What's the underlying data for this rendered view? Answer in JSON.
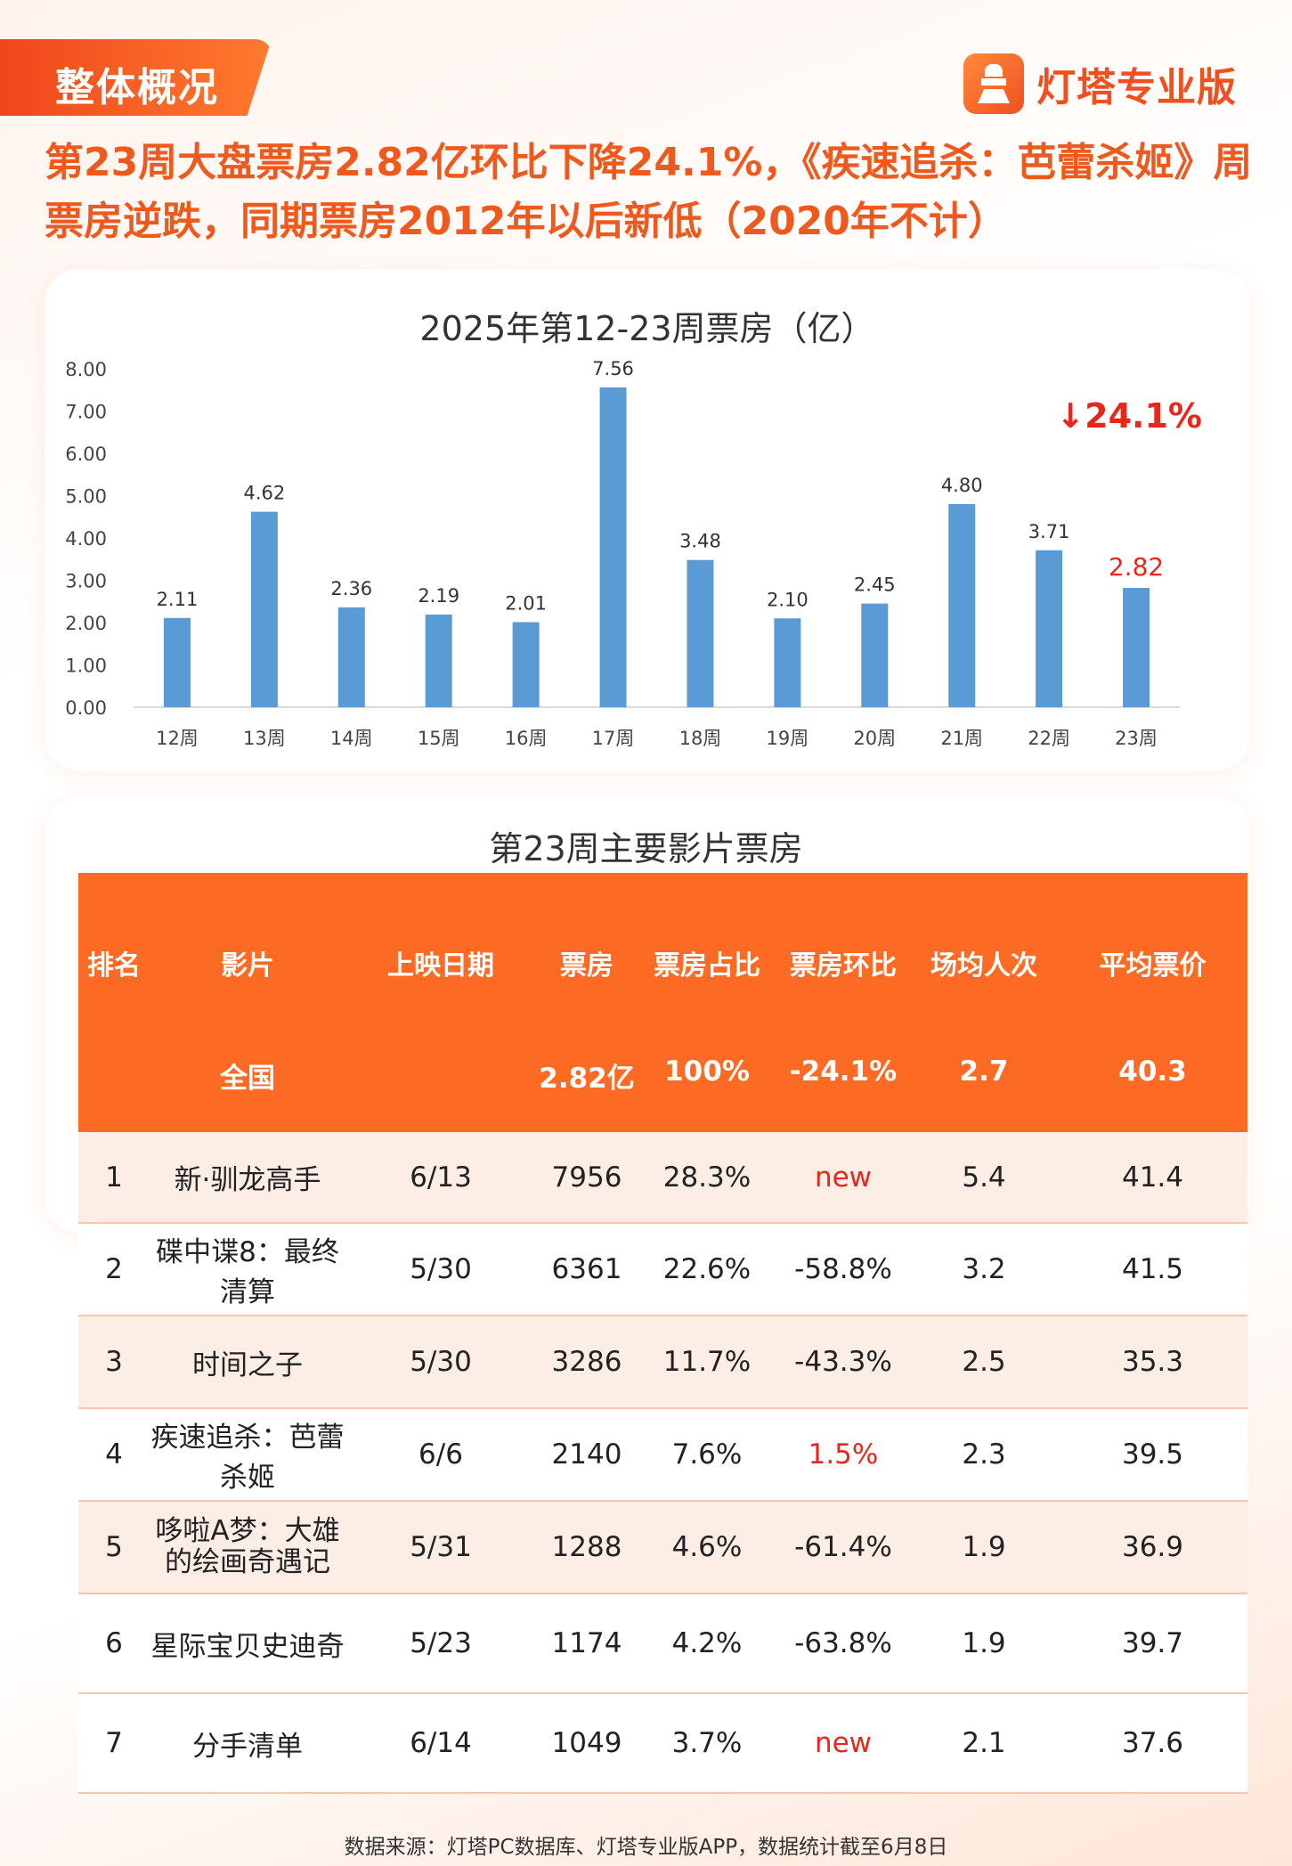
{
  "header": {
    "tag": "整体概况",
    "brand": "灯塔专业版",
    "headline": "第23周大盘票房2.82亿环比下降24.1%，《疾速追杀：芭蕾杀姬》周票房逆跌，同期票房2012年以后新低（2020年不计）"
  },
  "chart_data": {
    "type": "bar",
    "title": "2025年第12-23周票房（亿）",
    "categories": [
      "12周",
      "13周",
      "14周",
      "15周",
      "16周",
      "17周",
      "18周",
      "19周",
      "20周",
      "21周",
      "22周",
      "23周"
    ],
    "values": [
      2.11,
      4.62,
      2.36,
      2.19,
      2.01,
      7.56,
      3.48,
      2.1,
      2.45,
      4.8,
      3.71,
      2.82
    ],
    "value_labels": [
      "2.11",
      "4.62",
      "2.36",
      "2.19",
      "2.01",
      "7.56",
      "3.48",
      "2.10",
      "2.45",
      "4.80",
      "3.71",
      "2.82"
    ],
    "ylim": [
      0,
      8
    ],
    "yticks": [
      "0.00",
      "1.00",
      "2.00",
      "3.00",
      "4.00",
      "5.00",
      "6.00",
      "7.00",
      "8.00"
    ],
    "grid": false,
    "legend": "none",
    "bar_color": "#5b9bd5",
    "highlight_index": 11,
    "highlight_label_color": "#e8261c",
    "annotation": "↓24.1%",
    "annotation_color": "#e8261c"
  },
  "table": {
    "title": "第23周主要影片票房",
    "columns": [
      "排名",
      "影片",
      "上映日期",
      "票房",
      "票房占比",
      "票房环比",
      "场均人次",
      "平均票价"
    ],
    "national": {
      "label": "全国",
      "box": "2.82亿",
      "share": "100%",
      "change": "-24.1%",
      "avg_people": "2.7",
      "avg_price": "40.3"
    },
    "rows": [
      {
        "rank": "1",
        "film": "新·驯龙高手",
        "date": "6/13",
        "box": "7956",
        "share": "28.3%",
        "change": "new",
        "avg_people": "5.4",
        "avg_price": "41.4"
      },
      {
        "rank": "2",
        "film": "碟中谍8：最终清算",
        "date": "5/30",
        "box": "6361",
        "share": "22.6%",
        "change": "-58.8%",
        "avg_people": "3.2",
        "avg_price": "41.5"
      },
      {
        "rank": "3",
        "film": "时间之子",
        "date": "5/30",
        "box": "3286",
        "share": "11.7%",
        "change": "-43.3%",
        "avg_people": "2.5",
        "avg_price": "35.3"
      },
      {
        "rank": "4",
        "film": "疾速追杀：芭蕾杀姬",
        "date": "6/6",
        "box": "2140",
        "share": "7.6%",
        "change": "1.5%",
        "avg_people": "2.3",
        "avg_price": "39.5"
      },
      {
        "rank": "5",
        "film": "哆啦A梦：大雄的绘画奇遇记",
        "date": "5/31",
        "box": "1288",
        "share": "4.6%",
        "change": "-61.4%",
        "avg_people": "1.9",
        "avg_price": "36.9"
      },
      {
        "rank": "6",
        "film": "星际宝贝史迪奇",
        "date": "5/23",
        "box": "1174",
        "share": "4.2%",
        "change": "-63.8%",
        "avg_people": "1.9",
        "avg_price": "39.7"
      },
      {
        "rank": "7",
        "film": "分手清单",
        "date": "6/14",
        "box": "1049",
        "share": "3.7%",
        "change": "new",
        "avg_people": "2.1",
        "avg_price": "37.6"
      }
    ]
  },
  "footer": "数据来源：灯塔PC数据库、灯塔专业版APP，数据统计截至6月8日"
}
